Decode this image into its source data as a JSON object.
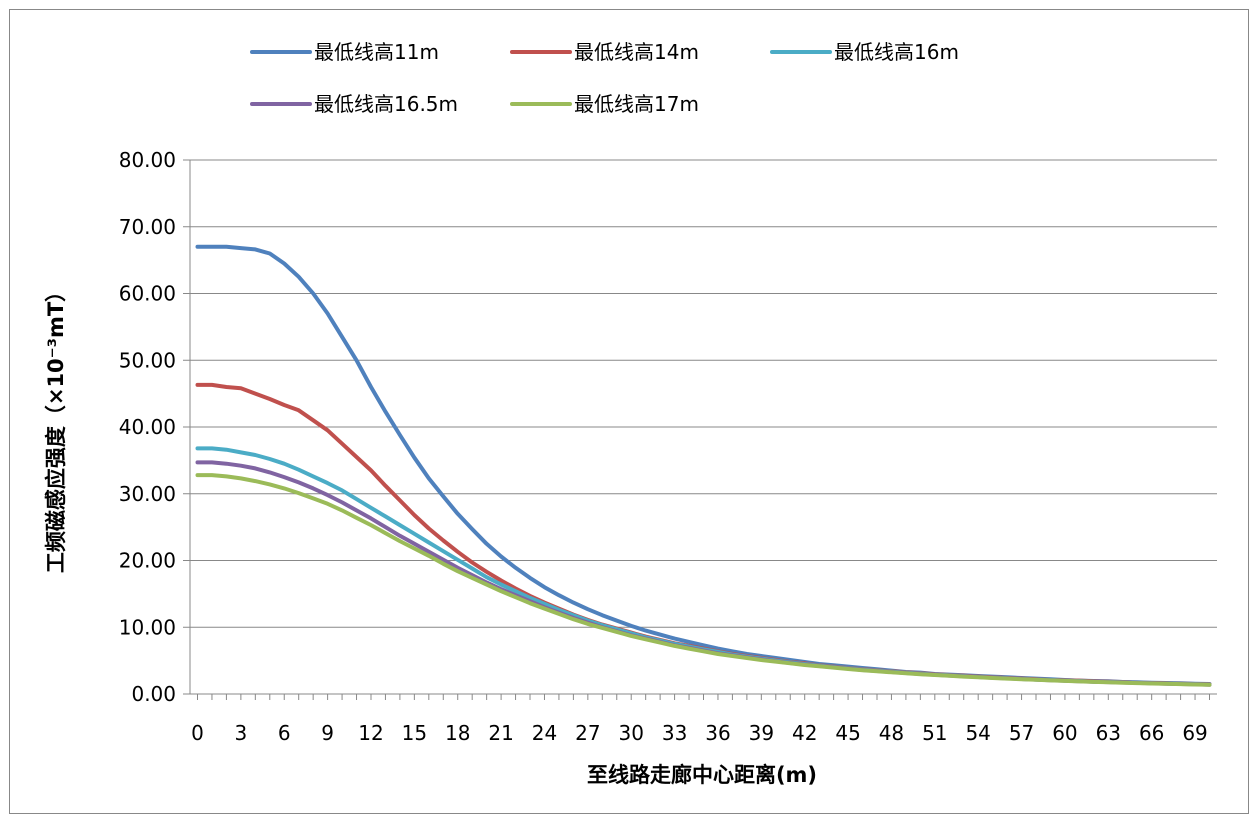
{
  "chart_data": {
    "type": "line",
    "title": "",
    "xlabel": "至线路走廊中心距离(m)",
    "ylabel": "工频磁感应强度（×10⁻³mT）",
    "ylim": [
      0,
      80
    ],
    "yticks": [
      "0.00",
      "10.00",
      "20.00",
      "30.00",
      "40.00",
      "50.00",
      "60.00",
      "70.00",
      "80.00"
    ],
    "xlim": [
      0,
      70
    ],
    "xticks": [
      "0",
      "3",
      "6",
      "9",
      "12",
      "15",
      "18",
      "21",
      "24",
      "27",
      "30",
      "33",
      "36",
      "39",
      "42",
      "45",
      "48",
      "51",
      "54",
      "57",
      "60",
      "63",
      "66",
      "69"
    ],
    "grid": true,
    "legend_position": "top",
    "x": [
      0,
      1,
      2,
      3,
      4,
      5,
      6,
      7,
      8,
      9,
      10,
      11,
      12,
      13,
      14,
      15,
      16,
      17,
      18,
      19,
      20,
      21,
      22,
      23,
      24,
      25,
      26,
      27,
      28,
      29,
      30,
      31,
      32,
      33,
      34,
      35,
      36,
      37,
      38,
      39,
      40,
      41,
      42,
      43,
      44,
      45,
      46,
      47,
      48,
      49,
      50,
      51,
      52,
      53,
      54,
      55,
      56,
      57,
      58,
      59,
      60,
      61,
      62,
      63,
      64,
      65,
      66,
      67,
      68,
      69,
      70
    ],
    "series": [
      {
        "name": "最低线高11m",
        "color": "#4f81bd",
        "values": [
          67.0,
          67.0,
          67.0,
          66.8,
          66.6,
          66.0,
          64.5,
          62.5,
          60.0,
          57.0,
          53.5,
          50.0,
          46.0,
          42.3,
          38.8,
          35.4,
          32.3,
          29.6,
          27.0,
          24.7,
          22.5,
          20.6,
          18.9,
          17.4,
          16.0,
          14.8,
          13.7,
          12.7,
          11.8,
          11.0,
          10.2,
          9.5,
          8.9,
          8.3,
          7.8,
          7.3,
          6.8,
          6.4,
          6.0,
          5.7,
          5.4,
          5.1,
          4.8,
          4.5,
          4.3,
          4.1,
          3.9,
          3.7,
          3.5,
          3.3,
          3.2,
          3.0,
          2.9,
          2.8,
          2.7,
          2.6,
          2.5,
          2.4,
          2.3,
          2.2,
          2.1,
          2.0,
          1.95,
          1.9,
          1.8,
          1.75,
          1.7,
          1.65,
          1.6,
          1.55,
          1.5
        ]
      },
      {
        "name": "最低线高14m",
        "color": "#c0504d",
        "values": [
          46.3,
          46.3,
          46.0,
          45.8,
          45.0,
          44.2,
          43.3,
          42.5,
          41.0,
          39.5,
          37.5,
          35.5,
          33.5,
          31.2,
          29.0,
          26.8,
          24.8,
          23.0,
          21.3,
          19.7,
          18.3,
          17.0,
          15.8,
          14.7,
          13.7,
          12.8,
          11.9,
          11.1,
          10.4,
          9.8,
          9.2,
          8.6,
          8.1,
          7.6,
          7.2,
          6.8,
          6.4,
          6.0,
          5.7,
          5.4,
          5.1,
          4.8,
          4.6,
          4.3,
          4.1,
          3.9,
          3.7,
          3.55,
          3.4,
          3.25,
          3.1,
          2.95,
          2.85,
          2.75,
          2.6,
          2.5,
          2.4,
          2.3,
          2.2,
          2.1,
          2.05,
          2.0,
          1.9,
          1.85,
          1.8,
          1.7,
          1.65,
          1.6,
          1.55,
          1.5,
          1.45
        ]
      },
      {
        "name": "最低线高16m",
        "color": "#4bacc6",
        "values": [
          36.8,
          36.8,
          36.6,
          36.2,
          35.8,
          35.2,
          34.5,
          33.6,
          32.6,
          31.6,
          30.5,
          29.2,
          27.9,
          26.6,
          25.3,
          24.0,
          22.7,
          21.4,
          20.1,
          18.8,
          17.5,
          16.4,
          15.4,
          14.4,
          13.5,
          12.6,
          11.8,
          11.0,
          10.3,
          9.7,
          9.1,
          8.5,
          8.0,
          7.5,
          7.1,
          6.7,
          6.3,
          5.9,
          5.6,
          5.3,
          5.0,
          4.75,
          4.5,
          4.25,
          4.05,
          3.85,
          3.65,
          3.5,
          3.35,
          3.2,
          3.05,
          2.9,
          2.8,
          2.7,
          2.55,
          2.45,
          2.35,
          2.25,
          2.15,
          2.1,
          2.0,
          1.95,
          1.85,
          1.8,
          1.75,
          1.7,
          1.62,
          1.58,
          1.52,
          1.48,
          1.42
        ]
      },
      {
        "name": "最低线高16.5m",
        "color": "#8064a2",
        "values": [
          34.7,
          34.7,
          34.5,
          34.2,
          33.8,
          33.2,
          32.5,
          31.7,
          30.8,
          29.8,
          28.7,
          27.5,
          26.3,
          25.0,
          23.7,
          22.5,
          21.3,
          20.1,
          18.9,
          17.8,
          16.7,
          15.7,
          14.8,
          13.9,
          13.0,
          12.2,
          11.4,
          10.7,
          10.0,
          9.4,
          8.8,
          8.3,
          7.8,
          7.3,
          6.9,
          6.5,
          6.1,
          5.8,
          5.5,
          5.2,
          4.9,
          4.65,
          4.4,
          4.2,
          4.0,
          3.8,
          3.6,
          3.45,
          3.3,
          3.15,
          3.0,
          2.88,
          2.76,
          2.65,
          2.54,
          2.44,
          2.34,
          2.24,
          2.15,
          2.07,
          1.99,
          1.92,
          1.85,
          1.78,
          1.72,
          1.66,
          1.6,
          1.55,
          1.5,
          1.45,
          1.4
        ]
      },
      {
        "name": "最低线高17m",
        "color": "#9bbb59",
        "values": [
          32.8,
          32.8,
          32.6,
          32.3,
          31.9,
          31.4,
          30.8,
          30.1,
          29.3,
          28.5,
          27.5,
          26.4,
          25.3,
          24.1,
          22.9,
          21.8,
          20.7,
          19.5,
          18.4,
          17.4,
          16.4,
          15.4,
          14.5,
          13.6,
          12.8,
          12.0,
          11.2,
          10.5,
          9.9,
          9.3,
          8.7,
          8.2,
          7.7,
          7.2,
          6.8,
          6.4,
          6.0,
          5.7,
          5.4,
          5.1,
          4.85,
          4.6,
          4.35,
          4.15,
          3.95,
          3.75,
          3.57,
          3.4,
          3.25,
          3.1,
          2.96,
          2.84,
          2.72,
          2.61,
          2.5,
          2.4,
          2.3,
          2.21,
          2.12,
          2.04,
          1.96,
          1.89,
          1.82,
          1.76,
          1.7,
          1.64,
          1.58,
          1.53,
          1.48,
          1.43,
          1.38
        ]
      }
    ]
  }
}
